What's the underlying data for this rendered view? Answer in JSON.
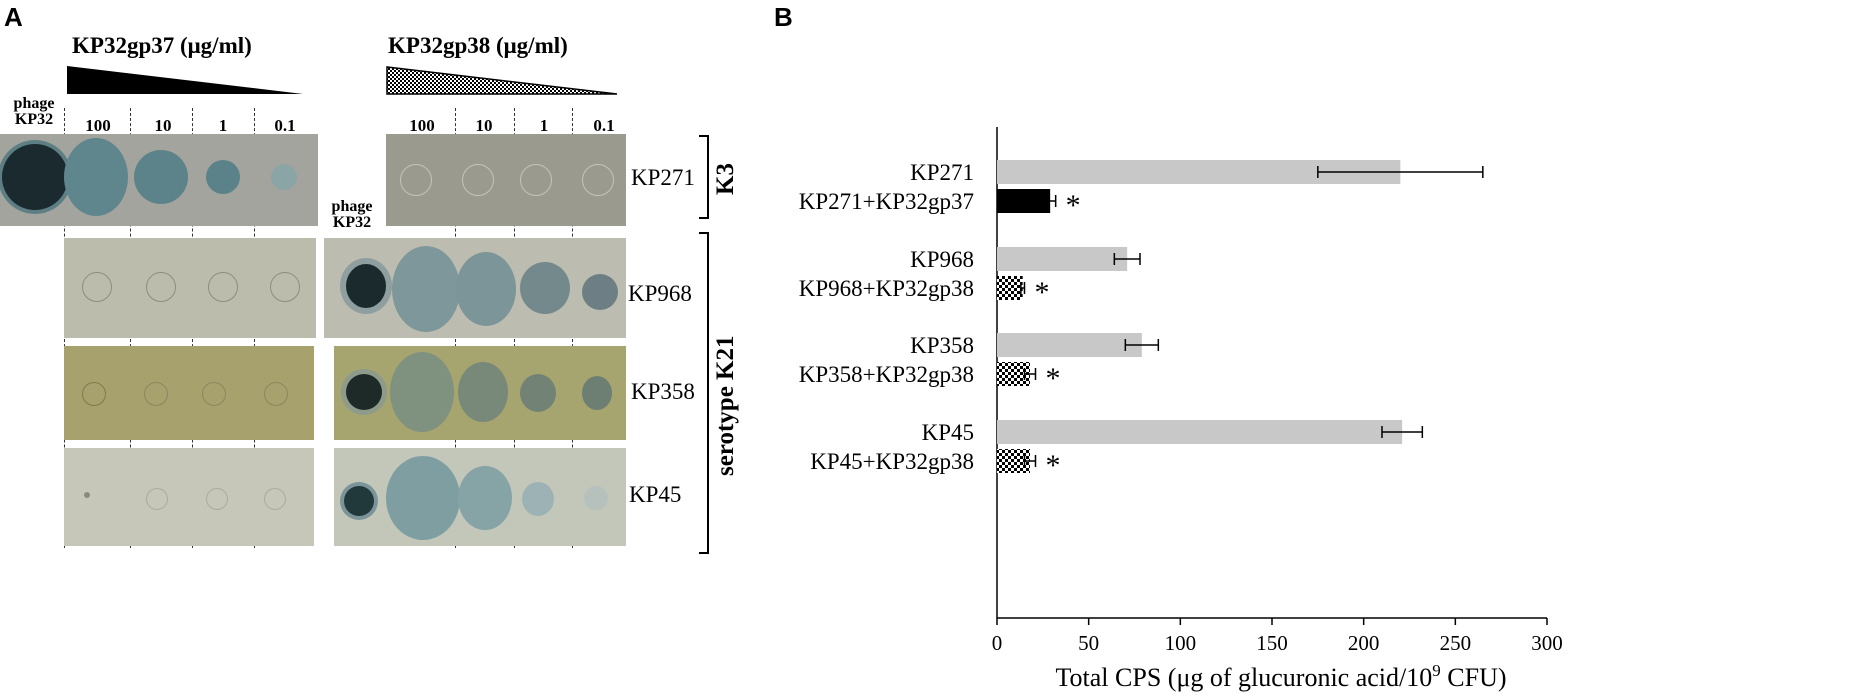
{
  "panel_a": {
    "label": "A",
    "left_title": "KP32gp37 (μg/ml)",
    "right_title": "KP32gp38 (μg/ml)",
    "phage_label_line1": "phage",
    "phage_label_line2": "KP32",
    "concentrations": [
      "100",
      "10",
      "1",
      "0.1"
    ],
    "strains": [
      "KP271",
      "KP968",
      "KP358",
      "KP45"
    ],
    "group_k3": "K3",
    "group_k21": "serotype K21"
  },
  "chart_data": {
    "panel_label": "B",
    "type": "bar",
    "orientation": "horizontal",
    "categories": [
      "KP271",
      "KP271+KP32gp37",
      "KP968",
      "KP968+KP32gp38",
      "KP358",
      "KP358+KP32gp38",
      "KP45",
      "KP45+KP32gp38"
    ],
    "values": [
      220,
      29,
      71,
      14,
      79,
      18,
      221,
      18
    ],
    "errors": [
      45,
      3,
      7,
      1,
      9,
      3,
      11,
      3
    ],
    "fills": [
      "gray",
      "black",
      "gray",
      "hatched",
      "gray",
      "hatched",
      "gray",
      "hatched"
    ],
    "significance": [
      "",
      "*",
      "",
      "*",
      "",
      "*",
      "",
      "*"
    ],
    "xlabel": "Total CPS (μg of glucuronic  acid/10",
    "xlabel_sup": "9",
    "xlabel_end": " CFU)",
    "xlim": [
      0,
      300
    ],
    "xticks": [
      0,
      50,
      100,
      150,
      200,
      250,
      300
    ],
    "grid": false,
    "colors": {
      "gray": "#c8c8c8",
      "black": "#000000"
    }
  }
}
